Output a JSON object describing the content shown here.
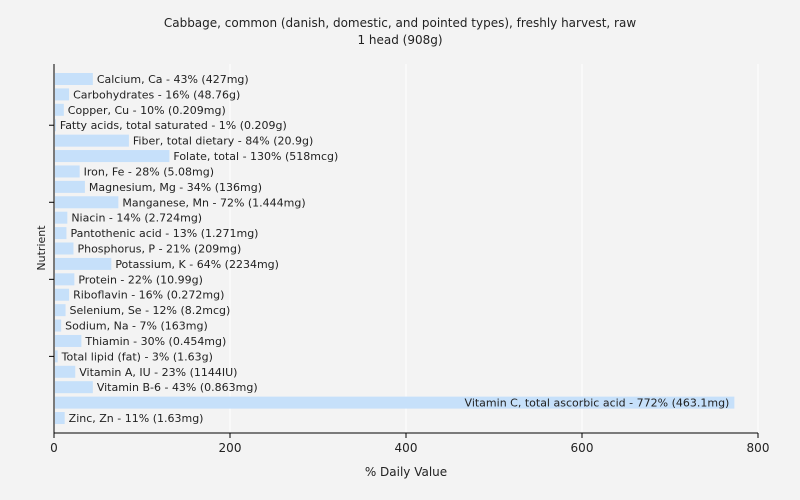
{
  "chart_data": {
    "type": "bar",
    "orientation": "horizontal",
    "title": "Cabbage, common (danish, domestic, and pointed types), freshly harvest, raw",
    "subtitle": "1 head (908g)",
    "xlabel": "% Daily Value",
    "ylabel": "Nutrient",
    "xlim": [
      0,
      800
    ],
    "xticks": [
      0,
      200,
      400,
      600,
      800
    ],
    "grid": true,
    "bar_color": "#c6e0fa",
    "grid_color": "#ffffff",
    "categories": [
      "Calcium, Ca",
      "Carbohydrates",
      "Copper, Cu",
      "Fatty acids, total saturated",
      "Fiber, total dietary",
      "Folate, total",
      "Iron, Fe",
      "Magnesium, Mg",
      "Manganese, Mn",
      "Niacin",
      "Pantothenic acid",
      "Phosphorus, P",
      "Potassium, K",
      "Protein",
      "Riboflavin",
      "Selenium, Se",
      "Sodium, Na",
      "Thiamin",
      "Total lipid (fat)",
      "Vitamin A, IU",
      "Vitamin B-6",
      "Vitamin C, total ascorbic acid",
      "Zinc, Zn"
    ],
    "values": [
      43,
      16,
      10,
      1,
      84,
      130,
      28,
      34,
      72,
      14,
      13,
      21,
      64,
      22,
      16,
      12,
      7,
      30,
      3,
      23,
      43,
      772,
      11
    ],
    "labels": [
      "Calcium, Ca - 43% (427mg)",
      "Carbohydrates - 16% (48.76g)",
      "Copper, Cu - 10% (0.209mg)",
      "Fatty acids, total saturated - 1% (0.209g)",
      "Fiber, total dietary - 84% (20.9g)",
      "Folate, total - 130% (518mcg)",
      "Iron, Fe - 28% (5.08mg)",
      "Magnesium, Mg - 34% (136mg)",
      "Manganese, Mn - 72% (1.444mg)",
      "Niacin - 14% (2.724mg)",
      "Pantothenic acid - 13% (1.271mg)",
      "Phosphorus, P - 21% (209mg)",
      "Potassium, K - 64% (2234mg)",
      "Protein - 22% (10.99g)",
      "Riboflavin - 16% (0.272mg)",
      "Selenium, Se - 12% (8.2mcg)",
      "Sodium, Na - 7% (163mg)",
      "Thiamin - 30% (0.454mg)",
      "Total lipid (fat) - 3% (1.63g)",
      "Vitamin A, IU - 23% (1144IU)",
      "Vitamin B-6 - 43% (0.863mg)",
      "Vitamin C, total ascorbic acid - 772% (463.1mg)",
      "Zinc, Zn - 11% (1.63mg)"
    ]
  }
}
